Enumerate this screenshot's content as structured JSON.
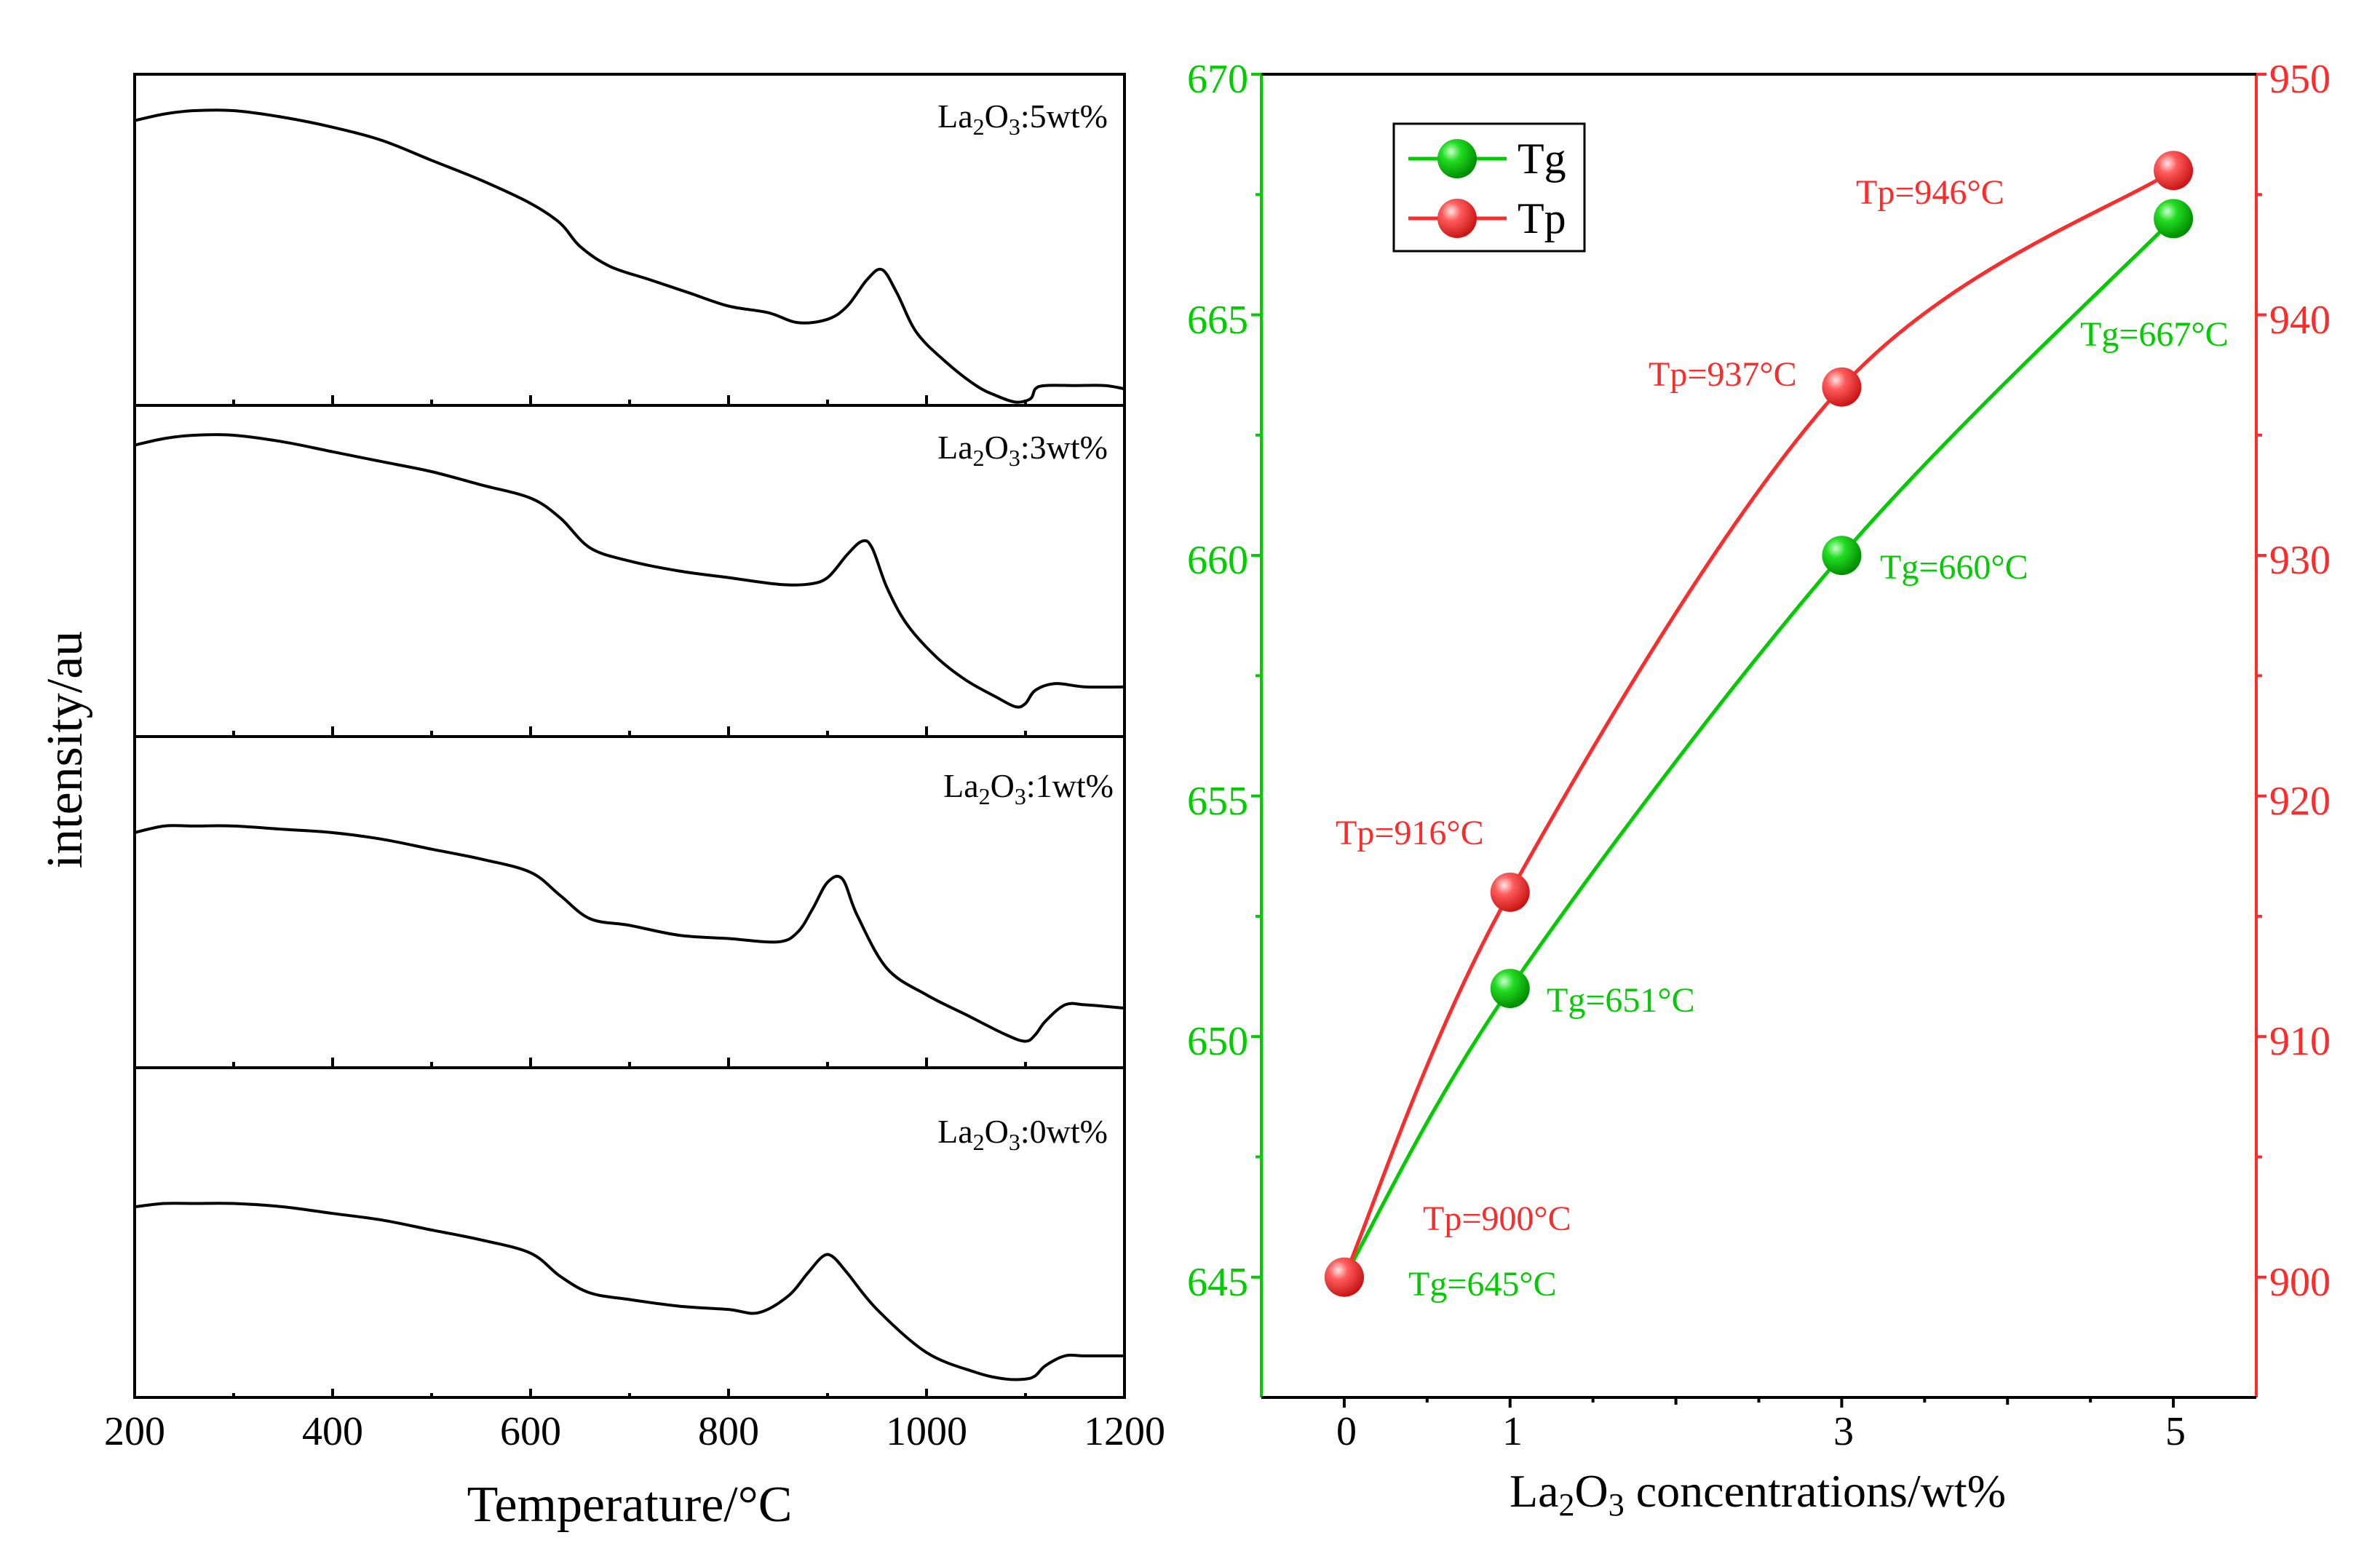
{
  "chart_data": [
    {
      "type": "line",
      "title": "",
      "xlabel": "Temperature/°C",
      "ylabel": "intensity/au",
      "xlim": [
        200,
        1200
      ],
      "xticks": [
        "200",
        "400",
        "600",
        "800",
        "1000",
        "1200"
      ],
      "grid": false,
      "panel_labels": [
        {
          "prefix": "La",
          "sub1": "2",
          "mid": "O",
          "sub2": "3",
          "suffix": ":5wt%"
        },
        {
          "prefix": "La",
          "sub1": "2",
          "mid": "O",
          "sub2": "3",
          "suffix": ":3wt%"
        },
        {
          "prefix": "La",
          "sub1": "2",
          "mid": "O",
          "sub2": "3",
          "suffix": ":1wt%"
        },
        {
          "prefix": "La",
          "sub1": "2",
          "mid": "O",
          "sub2": "3",
          "suffix": ":0wt%"
        }
      ],
      "series": [
        {
          "name": "5wt%",
          "x": [
            200,
            230,
            260,
            300,
            350,
            400,
            450,
            500,
            550,
            600,
            630,
            650,
            680,
            720,
            760,
            800,
            840,
            870,
            900,
            920,
            940,
            955,
            970,
            990,
            1020,
            1050,
            1070,
            1090,
            1105,
            1110,
            1120,
            1150,
            1180,
            1200
          ],
          "y": [
            0.86,
            0.88,
            0.89,
            0.89,
            0.87,
            0.84,
            0.8,
            0.74,
            0.68,
            0.61,
            0.55,
            0.48,
            0.42,
            0.38,
            0.34,
            0.3,
            0.28,
            0.25,
            0.26,
            0.3,
            0.38,
            0.41,
            0.34,
            0.22,
            0.13,
            0.06,
            0.03,
            0.01,
            0.02,
            0.05,
            0.06,
            0.06,
            0.06,
            0.05
          ]
        },
        {
          "name": "3wt%",
          "x": [
            200,
            230,
            260,
            300,
            350,
            400,
            450,
            500,
            550,
            600,
            630,
            660,
            700,
            750,
            800,
            850,
            880,
            900,
            920,
            935,
            945,
            960,
            980,
            1010,
            1040,
            1070,
            1090,
            1100,
            1110,
            1130,
            1160,
            1200
          ],
          "y": [
            0.88,
            0.9,
            0.91,
            0.91,
            0.89,
            0.86,
            0.83,
            0.8,
            0.76,
            0.72,
            0.66,
            0.57,
            0.53,
            0.5,
            0.48,
            0.46,
            0.46,
            0.48,
            0.55,
            0.59,
            0.57,
            0.45,
            0.34,
            0.24,
            0.17,
            0.12,
            0.09,
            0.1,
            0.14,
            0.16,
            0.15,
            0.15
          ]
        },
        {
          "name": "1wt%",
          "x": [
            200,
            230,
            260,
            300,
            350,
            400,
            450,
            500,
            550,
            600,
            630,
            660,
            700,
            750,
            800,
            850,
            870,
            885,
            900,
            915,
            930,
            960,
            1000,
            1040,
            1080,
            1100,
            1110,
            1120,
            1140,
            1160,
            1200
          ],
          "y": [
            0.71,
            0.73,
            0.73,
            0.73,
            0.72,
            0.71,
            0.69,
            0.66,
            0.63,
            0.59,
            0.52,
            0.45,
            0.43,
            0.4,
            0.39,
            0.38,
            0.41,
            0.48,
            0.56,
            0.57,
            0.46,
            0.3,
            0.22,
            0.16,
            0.1,
            0.08,
            0.1,
            0.14,
            0.19,
            0.19,
            0.18
          ]
        },
        {
          "name": "0wt%",
          "x": [
            200,
            230,
            260,
            300,
            350,
            400,
            450,
            500,
            550,
            600,
            630,
            660,
            700,
            750,
            800,
            830,
            860,
            880,
            895,
            905,
            920,
            950,
            1000,
            1050,
            1080,
            1100,
            1110,
            1120,
            1140,
            1160,
            1200
          ],
          "y": [
            0.58,
            0.59,
            0.59,
            0.59,
            0.58,
            0.56,
            0.54,
            0.51,
            0.48,
            0.44,
            0.37,
            0.32,
            0.3,
            0.28,
            0.27,
            0.26,
            0.31,
            0.38,
            0.43,
            0.43,
            0.38,
            0.27,
            0.14,
            0.08,
            0.06,
            0.06,
            0.07,
            0.1,
            0.13,
            0.13,
            0.13
          ]
        }
      ]
    },
    {
      "type": "line",
      "title": "",
      "xlabel": {
        "prefix": "La",
        "sub1": "2",
        "mid": "O",
        "sub2": "3",
        "suffix": " concentrations/wt%"
      },
      "ylabel_left": "",
      "ylabel_right": "",
      "x": [
        0,
        1,
        3,
        5
      ],
      "xticks": [
        "0",
        "1",
        "3",
        "5"
      ],
      "xlim": [
        -0.5,
        5.5
      ],
      "ylim_left": [
        642.5,
        670
      ],
      "ylim_right": [
        895,
        950
      ],
      "yticks_left": [
        "645",
        "650",
        "655",
        "660",
        "665",
        "670"
      ],
      "yticks_right": [
        "900",
        "910",
        "920",
        "930",
        "940",
        "950"
      ],
      "legend_position": "top-left",
      "series": [
        {
          "name": "Tg",
          "axis": "left",
          "color": "#00cc00",
          "values": [
            645,
            651,
            660,
            667
          ],
          "labels": [
            "Tg=645°C",
            "Tg=651°C",
            "Tg=660°C",
            "Tg=667°C"
          ]
        },
        {
          "name": "Tp",
          "axis": "right",
          "color": "#ff2a2a",
          "values": [
            900,
            916,
            937,
            946
          ],
          "labels": [
            "Tp=900°C",
            "Tp=916°C",
            "Tp=937°C",
            "Tp=946°C"
          ]
        }
      ]
    }
  ]
}
